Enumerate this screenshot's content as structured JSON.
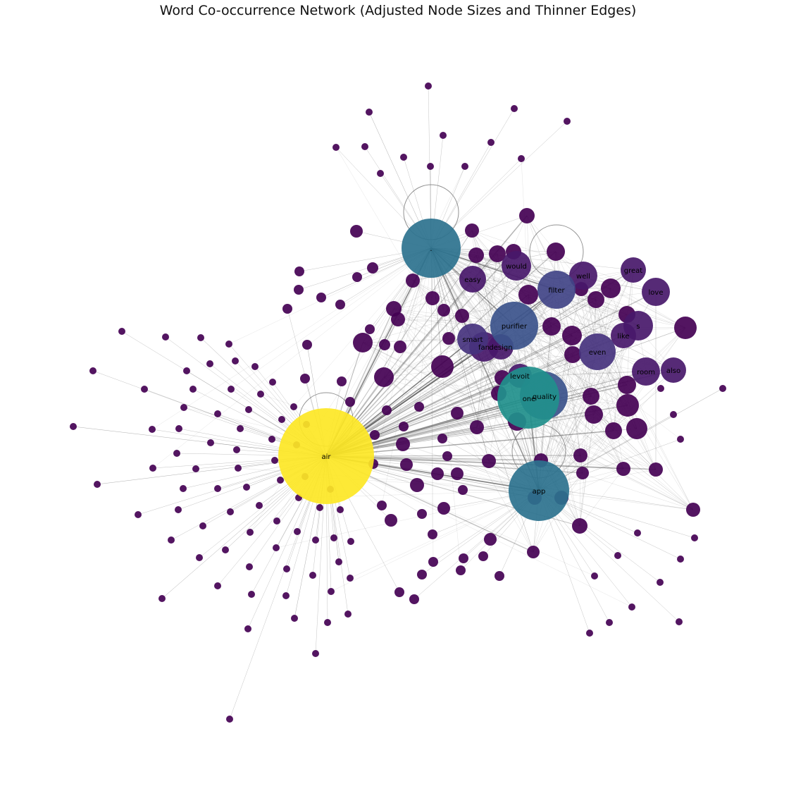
{
  "title": "Word Co-occurrence Network (Adjusted Node Sizes and Thinner Edges)",
  "colormap": {
    "name": "viridis",
    "low": "#440154",
    "mid_low": "#3b528b",
    "mid": "#21908c",
    "high": "#fde725"
  },
  "labeled_nodes": [
    {
      "word": "air",
      "color": "#fde725"
    },
    {
      "word": ".",
      "color": "#2c728e"
    },
    {
      "word": "app",
      "color": "#2c728e"
    },
    {
      "word": "one",
      "color": "#21908c"
    },
    {
      "word": "quality",
      "color": "#3b528b"
    },
    {
      "word": "purifier",
      "color": "#3b528b"
    },
    {
      "word": "filter",
      "color": "#414487"
    },
    {
      "word": "even",
      "color": "#46337e"
    },
    {
      "word": "smart",
      "color": "#46337e"
    },
    {
      "word": "fan",
      "color": "#48186a"
    },
    {
      "word": "design",
      "color": "#48186a"
    },
    {
      "word": "easy",
      "color": "#48186a"
    },
    {
      "word": "would",
      "color": "#48186a"
    },
    {
      "word": "well",
      "color": "#48186a"
    },
    {
      "word": "great",
      "color": "#48186a"
    },
    {
      "word": "love",
      "color": "#48186a"
    },
    {
      "word": "s",
      "color": "#48186a"
    },
    {
      "word": "like",
      "color": "#48186a"
    },
    {
      "word": "room",
      "color": "#48186a"
    },
    {
      "word": "also",
      "color": "#48186a"
    },
    {
      "word": "levoit",
      "color": "#48186a"
    }
  ]
}
